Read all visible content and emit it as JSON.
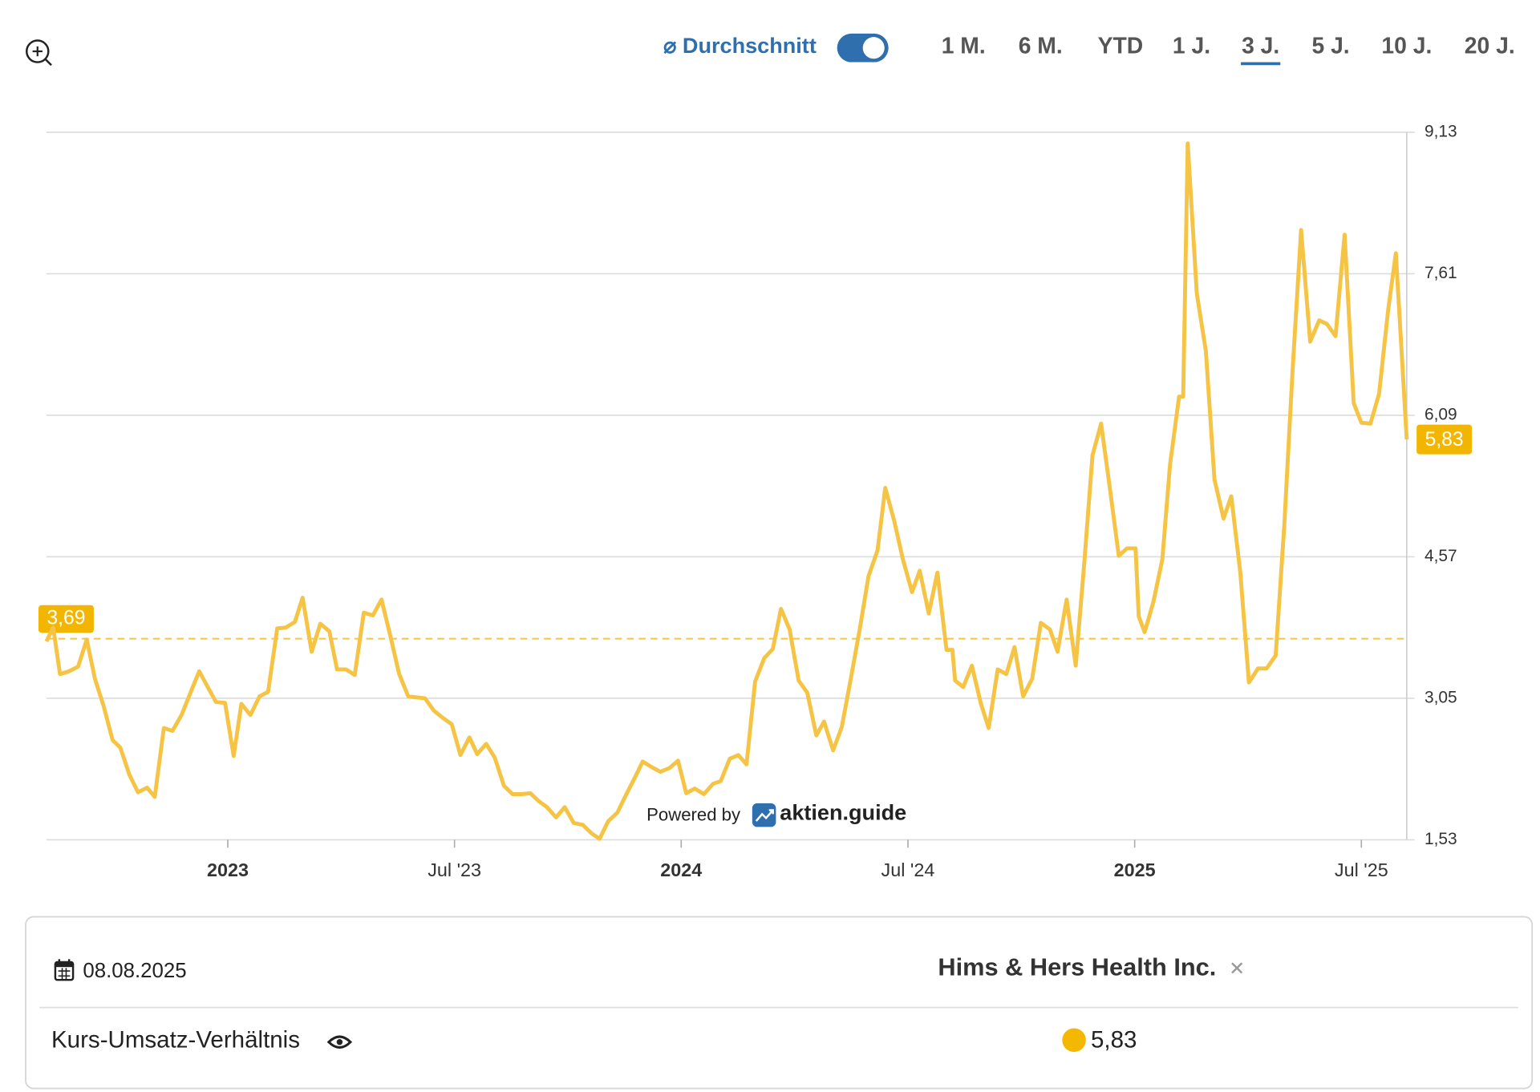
{
  "toolbar": {
    "average_label": "⌀ Durchschnitt",
    "ranges": [
      "1 M.",
      "6 M.",
      "YTD",
      "1 J.",
      "3 J.",
      "5 J.",
      "10 J.",
      "20 J."
    ],
    "active_range_index": 4
  },
  "chart_data": {
    "type": "line",
    "x": [
      2022.6,
      2022.615,
      2022.63,
      2022.65,
      2022.67,
      2022.689,
      2022.707,
      2022.726,
      2022.746,
      2022.763,
      2022.783,
      2022.802,
      2022.822,
      2022.839,
      2022.859,
      2022.878,
      2022.898,
      2022.917,
      2022.937,
      2022.957,
      2022.974,
      2022.994,
      2023.013,
      2023.03,
      2023.05,
      2023.07,
      2023.089,
      2023.109,
      2023.128,
      2023.148,
      2023.165,
      2023.185,
      2023.204,
      2023.224,
      2023.241,
      2023.261,
      2023.28,
      2023.3,
      2023.32,
      2023.339,
      2023.359,
      2023.378,
      2023.398,
      2023.415,
      2023.435,
      2023.454,
      2023.474,
      2023.494,
      2023.513,
      2023.533,
      2023.55,
      2023.57,
      2023.589,
      2023.609,
      2023.628,
      2023.648,
      2023.667,
      2023.687,
      2023.704,
      2023.724,
      2023.743,
      2023.763,
      2023.783,
      2023.802,
      2023.82,
      2023.839,
      2023.859,
      2023.878,
      2023.898,
      2023.915,
      2023.935,
      2023.954,
      2023.974,
      2023.993,
      2024.011,
      2024.03,
      2024.05,
      2024.07,
      2024.087,
      2024.107,
      2024.126,
      2024.144,
      2024.163,
      2024.183,
      2024.202,
      2024.22,
      2024.239,
      2024.259,
      2024.278,
      2024.298,
      2024.315,
      2024.335,
      2024.354,
      2024.374,
      2024.394,
      2024.413,
      2024.433,
      2024.45,
      2024.47,
      2024.489,
      2024.509,
      2024.526,
      2024.546,
      2024.565,
      2024.585,
      2024.598,
      2024.604,
      2024.622,
      2024.641,
      2024.661,
      2024.678,
      2024.698,
      2024.717,
      2024.735,
      2024.754,
      2024.774,
      2024.793,
      2024.813,
      2024.83,
      2024.85,
      2024.87,
      2024.889,
      2024.907,
      2024.926,
      2024.946,
      2024.965,
      2024.983,
      2025.002,
      2025.009,
      2025.022,
      2025.041,
      2025.061,
      2025.078,
      2025.098,
      2025.107,
      2025.117,
      2025.137,
      2025.157,
      2025.176,
      2025.196,
      2025.213,
      2025.233,
      2025.252,
      2025.272,
      2025.291,
      2025.311,
      2025.33,
      2025.348,
      2025.367,
      2025.387,
      2025.407,
      2025.424,
      2025.443,
      2025.463,
      2025.483,
      2025.5,
      2025.52,
      2025.539,
      2025.559,
      2025.576,
      2025.6
    ],
    "series": [
      {
        "name": "Kurs-Umsatz-Verhältnis",
        "color": "#f6c445",
        "last_value_label": "5,83",
        "values": [
          3.66,
          3.81,
          3.31,
          3.34,
          3.39,
          3.68,
          3.26,
          2.97,
          2.6,
          2.52,
          2.23,
          2.04,
          2.09,
          1.99,
          2.73,
          2.7,
          2.87,
          3.1,
          3.34,
          3.16,
          3.01,
          3.0,
          2.43,
          2.99,
          2.87,
          3.07,
          3.12,
          3.8,
          3.81,
          3.87,
          4.13,
          3.55,
          3.85,
          3.77,
          3.36,
          3.36,
          3.3,
          3.97,
          3.94,
          4.11,
          3.71,
          3.31,
          3.07,
          3.06,
          3.05,
          2.92,
          2.84,
          2.77,
          2.44,
          2.63,
          2.45,
          2.56,
          2.41,
          2.11,
          2.02,
          2.02,
          2.03,
          1.94,
          1.88,
          1.77,
          1.88,
          1.71,
          1.69,
          1.6,
          1.54,
          1.73,
          1.82,
          2.01,
          2.2,
          2.37,
          2.31,
          2.26,
          2.3,
          2.38,
          2.03,
          2.08,
          2.02,
          2.13,
          2.16,
          2.4,
          2.44,
          2.34,
          3.23,
          3.48,
          3.58,
          4.01,
          3.79,
          3.24,
          3.11,
          2.65,
          2.8,
          2.49,
          2.74,
          3.26,
          3.8,
          4.36,
          4.64,
          5.31,
          4.95,
          4.54,
          4.19,
          4.42,
          3.96,
          4.4,
          3.57,
          3.57,
          3.24,
          3.17,
          3.4,
          2.99,
          2.73,
          3.36,
          3.31,
          3.6,
          3.07,
          3.26,
          3.86,
          3.79,
          3.55,
          4.11,
          3.4,
          4.51,
          5.66,
          6.0,
          5.28,
          4.58,
          4.66,
          4.66,
          3.93,
          3.76,
          4.08,
          4.54,
          5.56,
          6.29,
          6.29,
          9.01,
          7.4,
          6.78,
          5.4,
          4.98,
          5.22,
          4.4,
          3.22,
          3.37,
          3.37,
          3.51,
          4.91,
          6.55,
          8.08,
          6.88,
          7.11,
          7.07,
          6.94,
          8.03,
          6.22,
          6.01,
          6.0,
          6.32,
          7.22,
          7.83,
          5.83
        ]
      }
    ],
    "average": 3.69,
    "average_label": "3,69",
    "xlim": [
      2022.6,
      2025.6
    ],
    "xticks": [
      {
        "value": 2023,
        "label": "2023"
      },
      {
        "value": 2023.5,
        "label": "Jul '23"
      },
      {
        "value": 2024,
        "label": "2024"
      },
      {
        "value": 2024.5,
        "label": "Jul '24"
      },
      {
        "value": 2025,
        "label": "2025"
      },
      {
        "value": 2025.5,
        "label": "Jul '25"
      }
    ],
    "ylim": [
      1.53,
      9.13
    ],
    "yticks": [
      {
        "value": 1.53,
        "label": "1,53"
      },
      {
        "value": 3.05,
        "label": "3,05"
      },
      {
        "value": 4.57,
        "label": "4,57"
      },
      {
        "value": 6.09,
        "label": "6,09"
      },
      {
        "value": 7.61,
        "label": "7,61"
      },
      {
        "value": 9.13,
        "label": "9,13"
      }
    ],
    "grid": true,
    "watermark": {
      "prefix": "Powered by",
      "brand": "aktien.guide"
    }
  },
  "panel": {
    "date": "08.08.2025",
    "company": "Hims & Hers Health Inc."
  }
}
